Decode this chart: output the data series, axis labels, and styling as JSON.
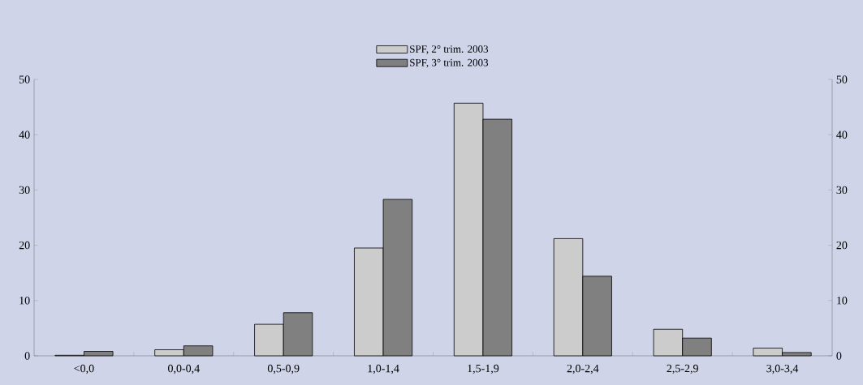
{
  "chart_data": {
    "type": "bar",
    "categories": [
      "<0,0",
      "0,0-0,4",
      "0,5-0,9",
      "1,0-1,4",
      "1,5-1,9",
      "2,0-2,4",
      "2,5-2,9",
      "3,0-3,4"
    ],
    "series": [
      {
        "name": "SPF, 2° trim. 2003",
        "color": "#cccccc",
        "values": [
          0.1,
          1.1,
          5.7,
          19.5,
          45.7,
          21.2,
          4.8,
          1.4
        ]
      },
      {
        "name": "SPF, 3° trim. 2003",
        "color": "#808080",
        "values": [
          0.8,
          1.8,
          7.8,
          28.3,
          42.8,
          14.4,
          3.2,
          0.6
        ]
      }
    ],
    "ylim": [
      0,
      50
    ],
    "yticks": [
      0,
      10,
      20,
      30,
      40,
      50
    ],
    "y2lim": [
      0,
      50
    ],
    "y2ticks": [
      0,
      10,
      20,
      30,
      40,
      50
    ],
    "legend": "top",
    "grid": false
  }
}
